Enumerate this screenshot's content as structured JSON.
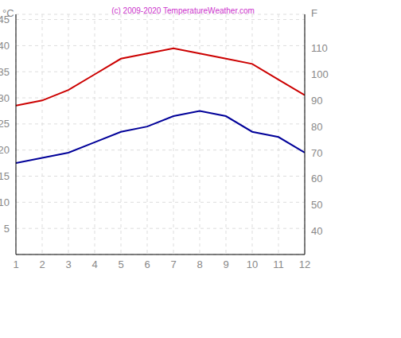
{
  "chart_data": {
    "type": "line",
    "title": "(c) 2009-2020  TemperatureWeather.com",
    "y_label": "°C",
    "y2_label": "F",
    "x": [
      1,
      2,
      3,
      4,
      5,
      6,
      7,
      8,
      9,
      10,
      11,
      12
    ],
    "xlim": [
      1,
      12
    ],
    "xticks": [
      1,
      2,
      3,
      4,
      5,
      6,
      7,
      8,
      9,
      10,
      11,
      12
    ],
    "ylim": [
      0,
      46
    ],
    "yticks": [
      5,
      10,
      15,
      20,
      25,
      30,
      35,
      40,
      45
    ],
    "y2lim": [
      31,
      123
    ],
    "y2ticks": [
      40,
      50,
      60,
      70,
      80,
      90,
      100,
      110
    ],
    "grid": true,
    "series": [
      {
        "color": "#cc0000",
        "values": [
          28.5,
          29.5,
          31.5,
          34.5,
          37.5,
          38.5,
          39.5,
          38.5,
          37.5,
          36.5,
          33.5,
          30.5
        ]
      },
      {
        "color": "#000099",
        "values": [
          17.5,
          18.5,
          19.5,
          21.5,
          23.5,
          24.5,
          26.5,
          27.5,
          26.5,
          23.5,
          22.5,
          19.5
        ]
      }
    ]
  }
}
